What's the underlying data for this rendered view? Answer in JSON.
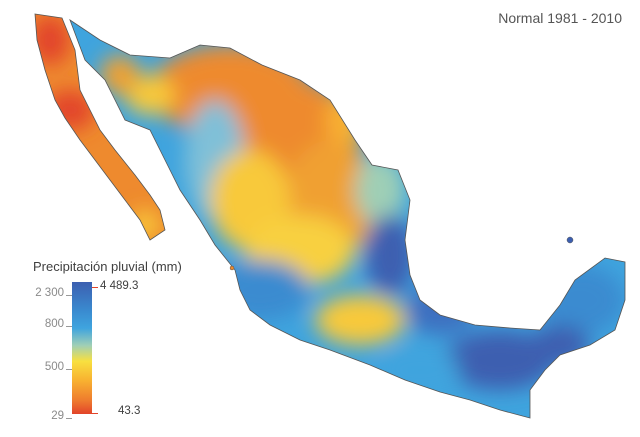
{
  "period_label": "Normal 1981 - 2010",
  "legend": {
    "title": "Precipitación pluvial (mm)",
    "scale_left": [
      "2 300",
      "800",
      "500",
      "29"
    ],
    "max_label": "4 489.3",
    "min_label": "43.3"
  },
  "colors": {
    "very_dry": "#e2442a",
    "dry": "#ee8a2e",
    "moderate": "#f8c93a",
    "transition": "#9fcfb6",
    "wet": "#3fa4de",
    "very_wet": "#3c5fb0",
    "background": "#ffffff"
  },
  "map": {
    "country": "México",
    "feature": "Precipitación pluvial"
  }
}
